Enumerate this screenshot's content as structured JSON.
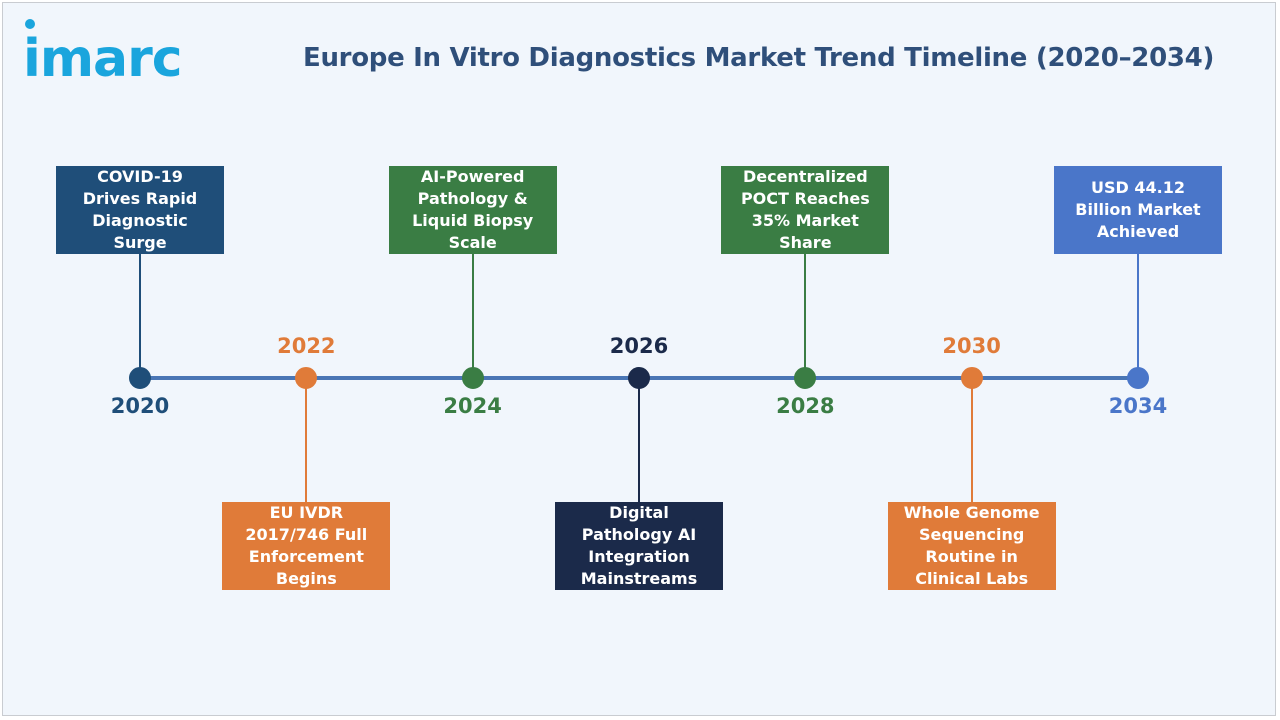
{
  "logo": {
    "text": "imarc"
  },
  "title": "Europe In Vitro Diagnostics Market Trend Timeline (2020–2034)",
  "colors": {
    "background": "#f1f6fc",
    "axis": "#4a76b5",
    "title": "#2f4f7a",
    "logo": "#1aa5dd"
  },
  "milestones": [
    {
      "year": "2020",
      "text": "COVID-19 Drives Rapid Diagnostic Surge",
      "color": "#1f4e79",
      "card_position": "above"
    },
    {
      "year": "2022",
      "text": "EU IVDR 2017/746 Full Enforcement Begins",
      "color": "#e07b39",
      "card_position": "below"
    },
    {
      "year": "2024",
      "text": "AI-Powered Pathology & Liquid Biopsy Scale",
      "color": "#3a7d44",
      "card_position": "above"
    },
    {
      "year": "2026",
      "text": "Digital Pathology AI Integration Mainstreams",
      "color": "#1b2a4a",
      "card_position": "below"
    },
    {
      "year": "2028",
      "text": "Decentralized POCT Reaches 35% Market Share",
      "color": "#3a7d44",
      "card_position": "above"
    },
    {
      "year": "2030",
      "text": "Whole Genome Sequencing Routine in Clinical Labs",
      "color": "#e07b39",
      "card_position": "below"
    },
    {
      "year": "2034",
      "text": "USD 44.12 Billion Market Achieved",
      "color": "#4a76c9",
      "card_position": "above"
    }
  ]
}
